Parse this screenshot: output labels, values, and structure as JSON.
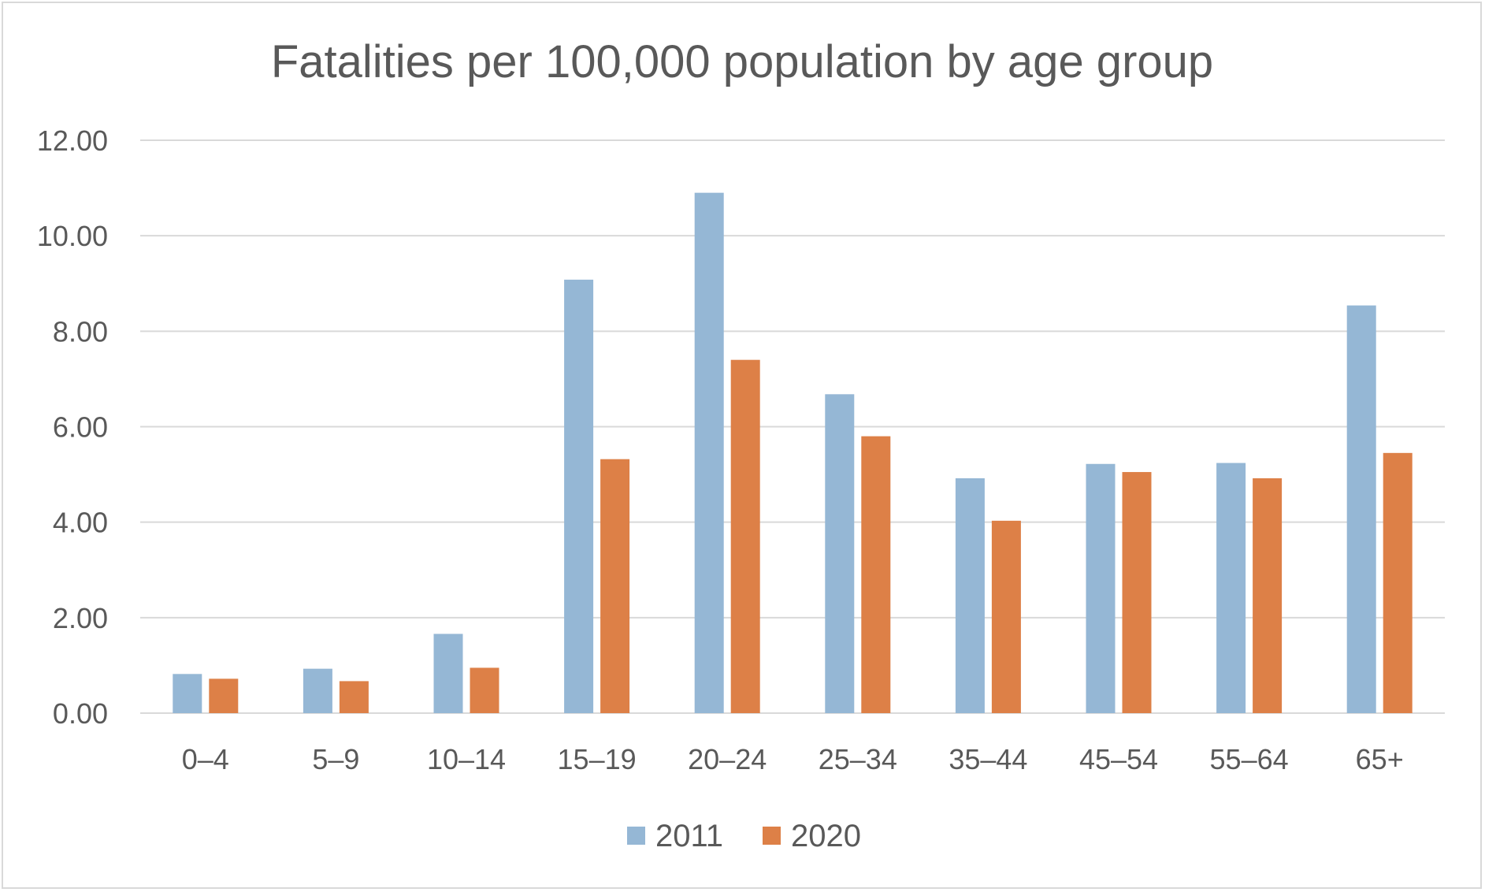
{
  "chart_data": {
    "type": "bar",
    "title": "Fatalities per 100,000 population by age group",
    "xlabel": "",
    "ylabel": "",
    "ylim": [
      0,
      12
    ],
    "y_ticks": [
      "0.00",
      "2.00",
      "4.00",
      "6.00",
      "8.00",
      "10.00",
      "12.00"
    ],
    "y_tick_values": [
      0,
      2,
      4,
      6,
      8,
      10,
      12
    ],
    "grid": true,
    "legend_position": "bottom",
    "categories": [
      "0–4",
      "5–9",
      "10–14",
      "15–19",
      "20–24",
      "25–34",
      "35–44",
      "45–54",
      "55–64",
      "65+"
    ],
    "series": [
      {
        "name": "2011",
        "color": "#95b7d5",
        "values": [
          0.82,
          0.93,
          1.66,
          9.08,
          10.9,
          6.68,
          4.92,
          5.22,
          5.24,
          8.54
        ]
      },
      {
        "name": "2020",
        "color": "#dd8047",
        "values": [
          0.72,
          0.67,
          0.95,
          5.32,
          7.4,
          5.8,
          4.03,
          5.05,
          4.92,
          5.45
        ]
      }
    ]
  }
}
